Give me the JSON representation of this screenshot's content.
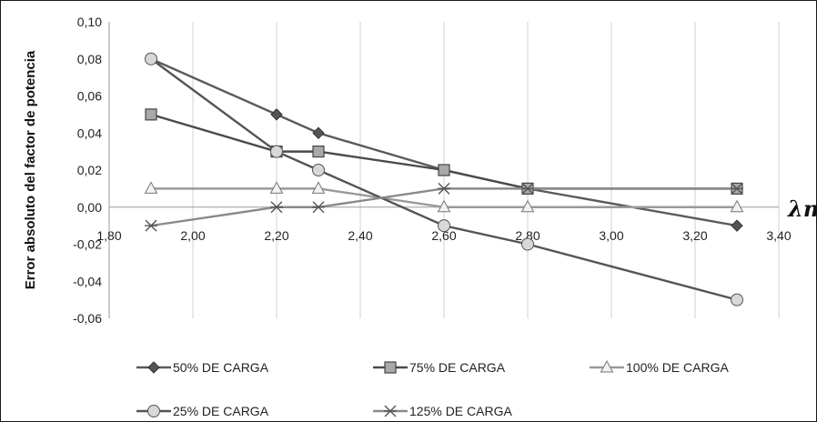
{
  "chart_data": {
    "type": "line",
    "ylabel": "Error absoluto del factor de potencia",
    "xlabel": "λm",
    "xlim": [
      1.8,
      3.4
    ],
    "ylim": [
      -0.06,
      0.1
    ],
    "x_ticks": [
      "1,80",
      "2,00",
      "2,20",
      "2,40",
      "2,60",
      "2,80",
      "3,00",
      "3,20",
      "3,40"
    ],
    "y_ticks": [
      "0,10",
      "0,08",
      "0,06",
      "0,04",
      "0,02",
      "0,00",
      "-0,02",
      "-0,04",
      "-0,06"
    ],
    "grid": "vertical",
    "legend_position": "bottom",
    "series": [
      {
        "name": "50% DE CARGA",
        "marker": "diamond",
        "color": "#5a5a5a",
        "x": [
          1.9,
          2.2,
          2.3,
          2.6,
          2.8,
          3.3
        ],
        "y": [
          0.08,
          0.05,
          0.04,
          0.02,
          0.01,
          -0.01
        ]
      },
      {
        "name": "75% DE CARGA",
        "marker": "square",
        "color": "#4a4a4a",
        "x": [
          1.9,
          2.2,
          2.3,
          2.6,
          2.8,
          3.3
        ],
        "y": [
          0.05,
          0.03,
          0.03,
          0.02,
          0.01,
          0.01
        ]
      },
      {
        "name": "100% DE CARGA",
        "marker": "triangle",
        "color": "#9a9a9a",
        "x": [
          1.9,
          2.2,
          2.3,
          2.6,
          2.8,
          3.3
        ],
        "y": [
          0.01,
          0.01,
          0.01,
          0.0,
          0.0,
          0.0
        ]
      },
      {
        "name": "25% DE CARGA",
        "marker": "circle",
        "color": "#555555",
        "x": [
          1.9,
          2.2,
          2.3,
          2.6,
          2.8,
          3.3
        ],
        "y": [
          0.08,
          0.03,
          0.02,
          -0.01,
          -0.02,
          -0.05
        ]
      },
      {
        "name": "125% DE CARGA",
        "marker": "asterisk",
        "color": "#8a8a8a",
        "x": [
          1.9,
          2.2,
          2.3,
          2.6,
          2.8,
          3.3
        ],
        "y": [
          -0.01,
          0.0,
          0.0,
          0.01,
          0.01,
          0.01
        ]
      }
    ]
  }
}
